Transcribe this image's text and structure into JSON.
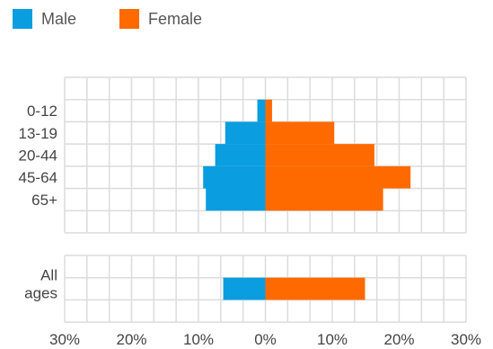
{
  "legend": {
    "male_label": "Male",
    "female_label": "Female",
    "male_color": "#0a9de0",
    "female_color": "#ff6a00"
  },
  "chart_data": {
    "type": "bar",
    "orientation": "horizontal",
    "layout": "population-pyramid",
    "categories": [
      "0-12",
      "13-19",
      "20-44",
      "45-64",
      "65+"
    ],
    "series": [
      {
        "name": "Male",
        "values": [
          1.2,
          6.0,
          7.5,
          9.3,
          8.9
        ]
      },
      {
        "name": "Female",
        "values": [
          1.0,
          10.3,
          16.3,
          21.7,
          17.6
        ]
      }
    ],
    "summary": {
      "categories": [
        "All ages"
      ],
      "series": [
        {
          "name": "Male",
          "values": [
            6.3
          ]
        },
        {
          "name": "Female",
          "values": [
            14.9
          ]
        }
      ]
    },
    "x_ticks": [
      "30%",
      "20%",
      "10%",
      "0%",
      "10%",
      "20%",
      "30%"
    ],
    "xlim": [
      -30,
      30
    ],
    "grid": true,
    "legend_position": "top-left"
  }
}
